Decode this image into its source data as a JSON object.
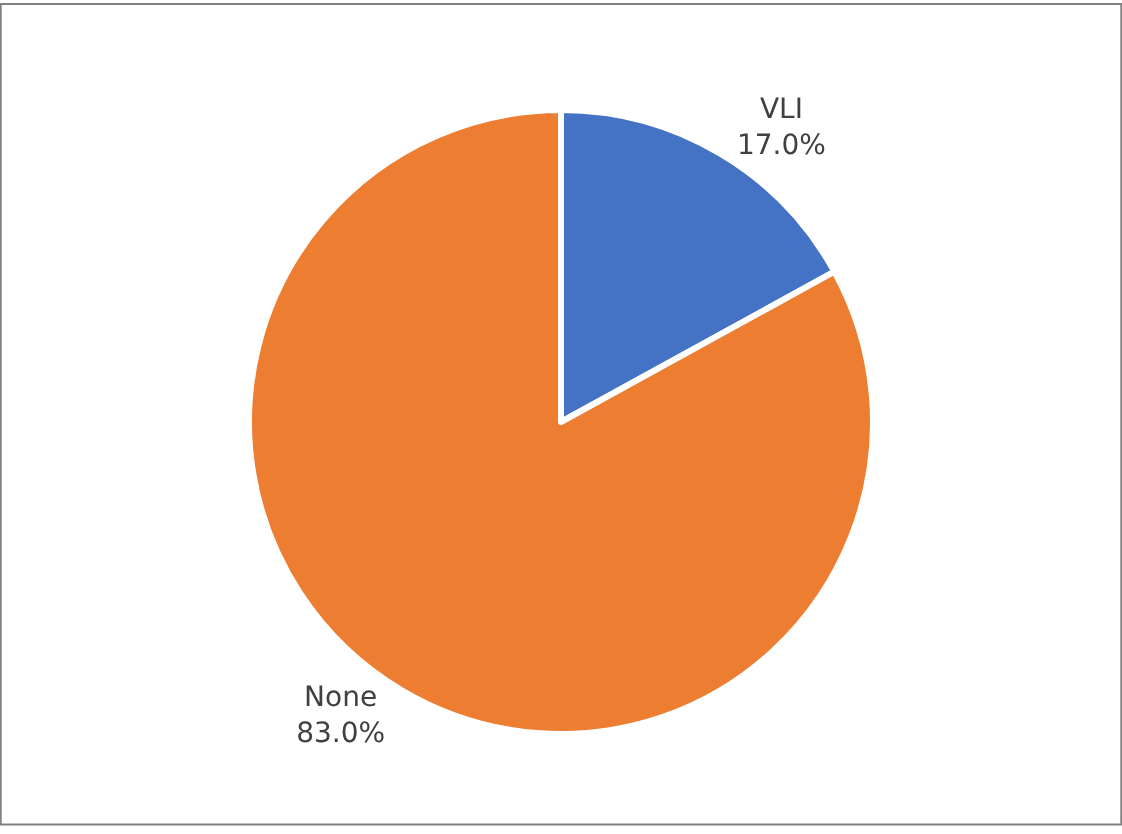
{
  "chart_data": {
    "type": "pie",
    "categories": [
      "VLI",
      "None"
    ],
    "values": [
      17.0,
      83.0
    ],
    "value_labels": [
      "17.0%",
      "83.0%"
    ],
    "colors": [
      "#4472c4",
      "#ed7d31"
    ],
    "legend": false
  }
}
